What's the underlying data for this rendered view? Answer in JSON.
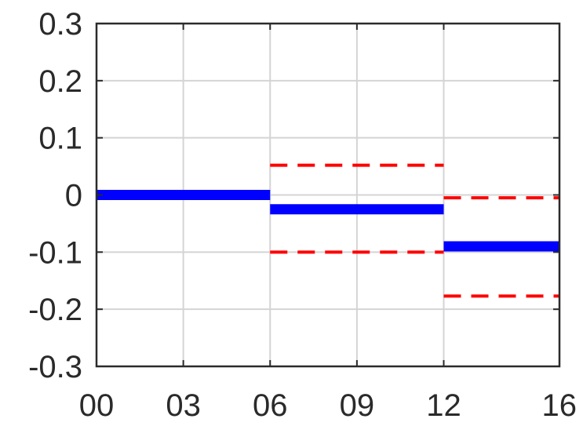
{
  "chart_data": {
    "type": "line",
    "title": "",
    "xlabel": "",
    "ylabel": "",
    "x_ticks": [
      {
        "value": 0,
        "label": "00"
      },
      {
        "value": 3,
        "label": "03"
      },
      {
        "value": 6,
        "label": "06"
      },
      {
        "value": 9,
        "label": "09"
      },
      {
        "value": 12,
        "label": "12"
      },
      {
        "value": 16,
        "label": "16"
      }
    ],
    "y_ticks": [
      {
        "value": 0.3,
        "label": "0.3"
      },
      {
        "value": 0.2,
        "label": "0.2"
      },
      {
        "value": 0.1,
        "label": "0.1"
      },
      {
        "value": 0,
        "label": "0"
      },
      {
        "value": -0.1,
        "label": "-0.1"
      },
      {
        "value": -0.2,
        "label": "-0.2"
      },
      {
        "value": -0.3,
        "label": "-0.3"
      }
    ],
    "xlim": [
      0,
      16
    ],
    "ylim": [
      -0.3,
      0.3
    ],
    "grid": true,
    "series": [
      {
        "style": "solid",
        "color": "#0000ff",
        "segments": [
          {
            "x": [
              0,
              6
            ],
            "y": 0.0
          },
          {
            "x": [
              6,
              12
            ],
            "y": -0.025
          },
          {
            "x": [
              12,
              16
            ],
            "y": -0.09
          }
        ]
      },
      {
        "style": "dashed",
        "color": "#ff0000",
        "segments": [
          {
            "x": [
              6,
              12
            ],
            "y": 0.052
          },
          {
            "x": [
              12,
              16
            ],
            "y": -0.005
          }
        ]
      },
      {
        "style": "dashed",
        "color": "#ff0000",
        "segments": [
          {
            "x": [
              6,
              12
            ],
            "y": -0.1
          },
          {
            "x": [
              12,
              16
            ],
            "y": -0.177
          }
        ]
      }
    ]
  }
}
